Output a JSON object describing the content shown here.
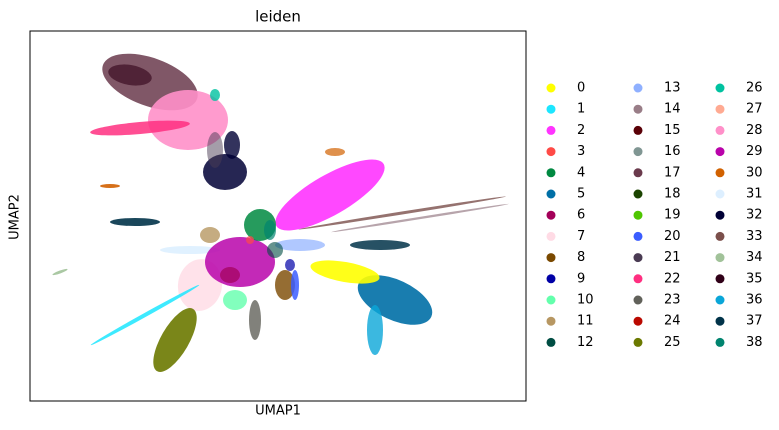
{
  "chart_data": {
    "type": "scatter",
    "title": "leiden",
    "x_label": "UMAP1",
    "y_label": "UMAP2",
    "series": [
      {
        "name": "0",
        "color": "#FFFF00"
      },
      {
        "name": "1",
        "color": "#1CE6FF"
      },
      {
        "name": "2",
        "color": "#FF34FF"
      },
      {
        "name": "3",
        "color": "#FF4A46"
      },
      {
        "name": "4",
        "color": "#008941"
      },
      {
        "name": "5",
        "color": "#006FA6"
      },
      {
        "name": "6",
        "color": "#A30059"
      },
      {
        "name": "7",
        "color": "#FFDBE5"
      },
      {
        "name": "8",
        "color": "#7A4900"
      },
      {
        "name": "9",
        "color": "#0000A6"
      },
      {
        "name": "10",
        "color": "#63FFAC"
      },
      {
        "name": "11",
        "color": "#B79762"
      },
      {
        "name": "12",
        "color": "#004D43"
      },
      {
        "name": "13",
        "color": "#8FB0FF"
      },
      {
        "name": "14",
        "color": "#997D87"
      },
      {
        "name": "15",
        "color": "#5A0007"
      },
      {
        "name": "16",
        "color": "#809693"
      },
      {
        "name": "17",
        "color": "#6A3A4C"
      },
      {
        "name": "18",
        "color": "#1B4400"
      },
      {
        "name": "19",
        "color": "#4FC601"
      },
      {
        "name": "20",
        "color": "#3B5DFF"
      },
      {
        "name": "21",
        "color": "#4A3B53"
      },
      {
        "name": "22",
        "color": "#FF2F80"
      },
      {
        "name": "23",
        "color": "#61615A"
      },
      {
        "name": "24",
        "color": "#BA0900"
      },
      {
        "name": "25",
        "color": "#6B7900"
      },
      {
        "name": "26",
        "color": "#00C2A0"
      },
      {
        "name": "27",
        "color": "#FFAA92"
      },
      {
        "name": "28",
        "color": "#FF90C9"
      },
      {
        "name": "29",
        "color": "#B903AA"
      },
      {
        "name": "30",
        "color": "#D16100"
      },
      {
        "name": "31",
        "color": "#DDEFFF"
      },
      {
        "name": "32",
        "color": "#000035"
      },
      {
        "name": "33",
        "color": "#7B4F4B"
      },
      {
        "name": "34",
        "color": "#A1C299"
      },
      {
        "name": "35",
        "color": "#300018"
      },
      {
        "name": "36",
        "color": "#0AA6D8"
      },
      {
        "name": "37",
        "color": "#013349"
      },
      {
        "name": "38",
        "color": "#00846F"
      }
    ]
  }
}
